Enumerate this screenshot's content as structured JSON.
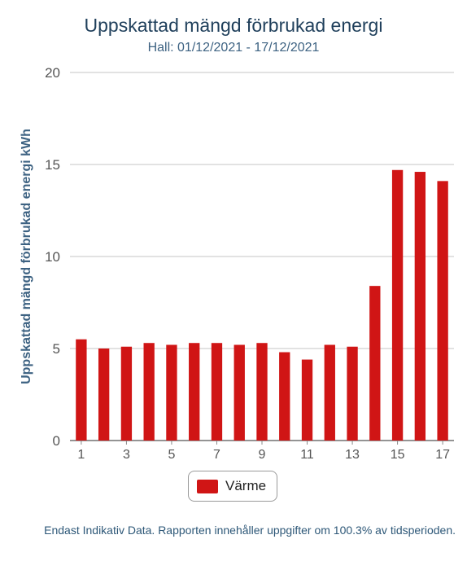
{
  "chart_data": {
    "type": "bar",
    "title": "Uppskattad mängd förbrukad energi",
    "subtitle": "Hall: 01/12/2021 - 17/12/2021",
    "xlabel": "",
    "ylabel": "Uppskattad mängd förbrukad energi kWh",
    "ylim": [
      0,
      20
    ],
    "yticks": [
      0,
      5,
      10,
      15,
      20
    ],
    "grid": true,
    "legend_placement": "bottom",
    "categories": [
      "1",
      "2",
      "3",
      "4",
      "5",
      "6",
      "7",
      "8",
      "9",
      "10",
      "11",
      "12",
      "13",
      "14",
      "15",
      "16",
      "17"
    ],
    "xtick_labels": [
      "1",
      "3",
      "5",
      "7",
      "9",
      "11",
      "13",
      "15",
      "17"
    ],
    "series": [
      {
        "name": "Värme",
        "color": "#d01515",
        "values": [
          5.5,
          5.0,
          5.1,
          5.3,
          5.2,
          5.3,
          5.3,
          5.2,
          5.3,
          4.8,
          4.4,
          5.2,
          5.1,
          8.4,
          14.7,
          14.6,
          14.1
        ]
      }
    ]
  },
  "footnote": "Endast Indikativ Data. Rapporten innehåller uppgifter om 100.3% av tidsperioden."
}
